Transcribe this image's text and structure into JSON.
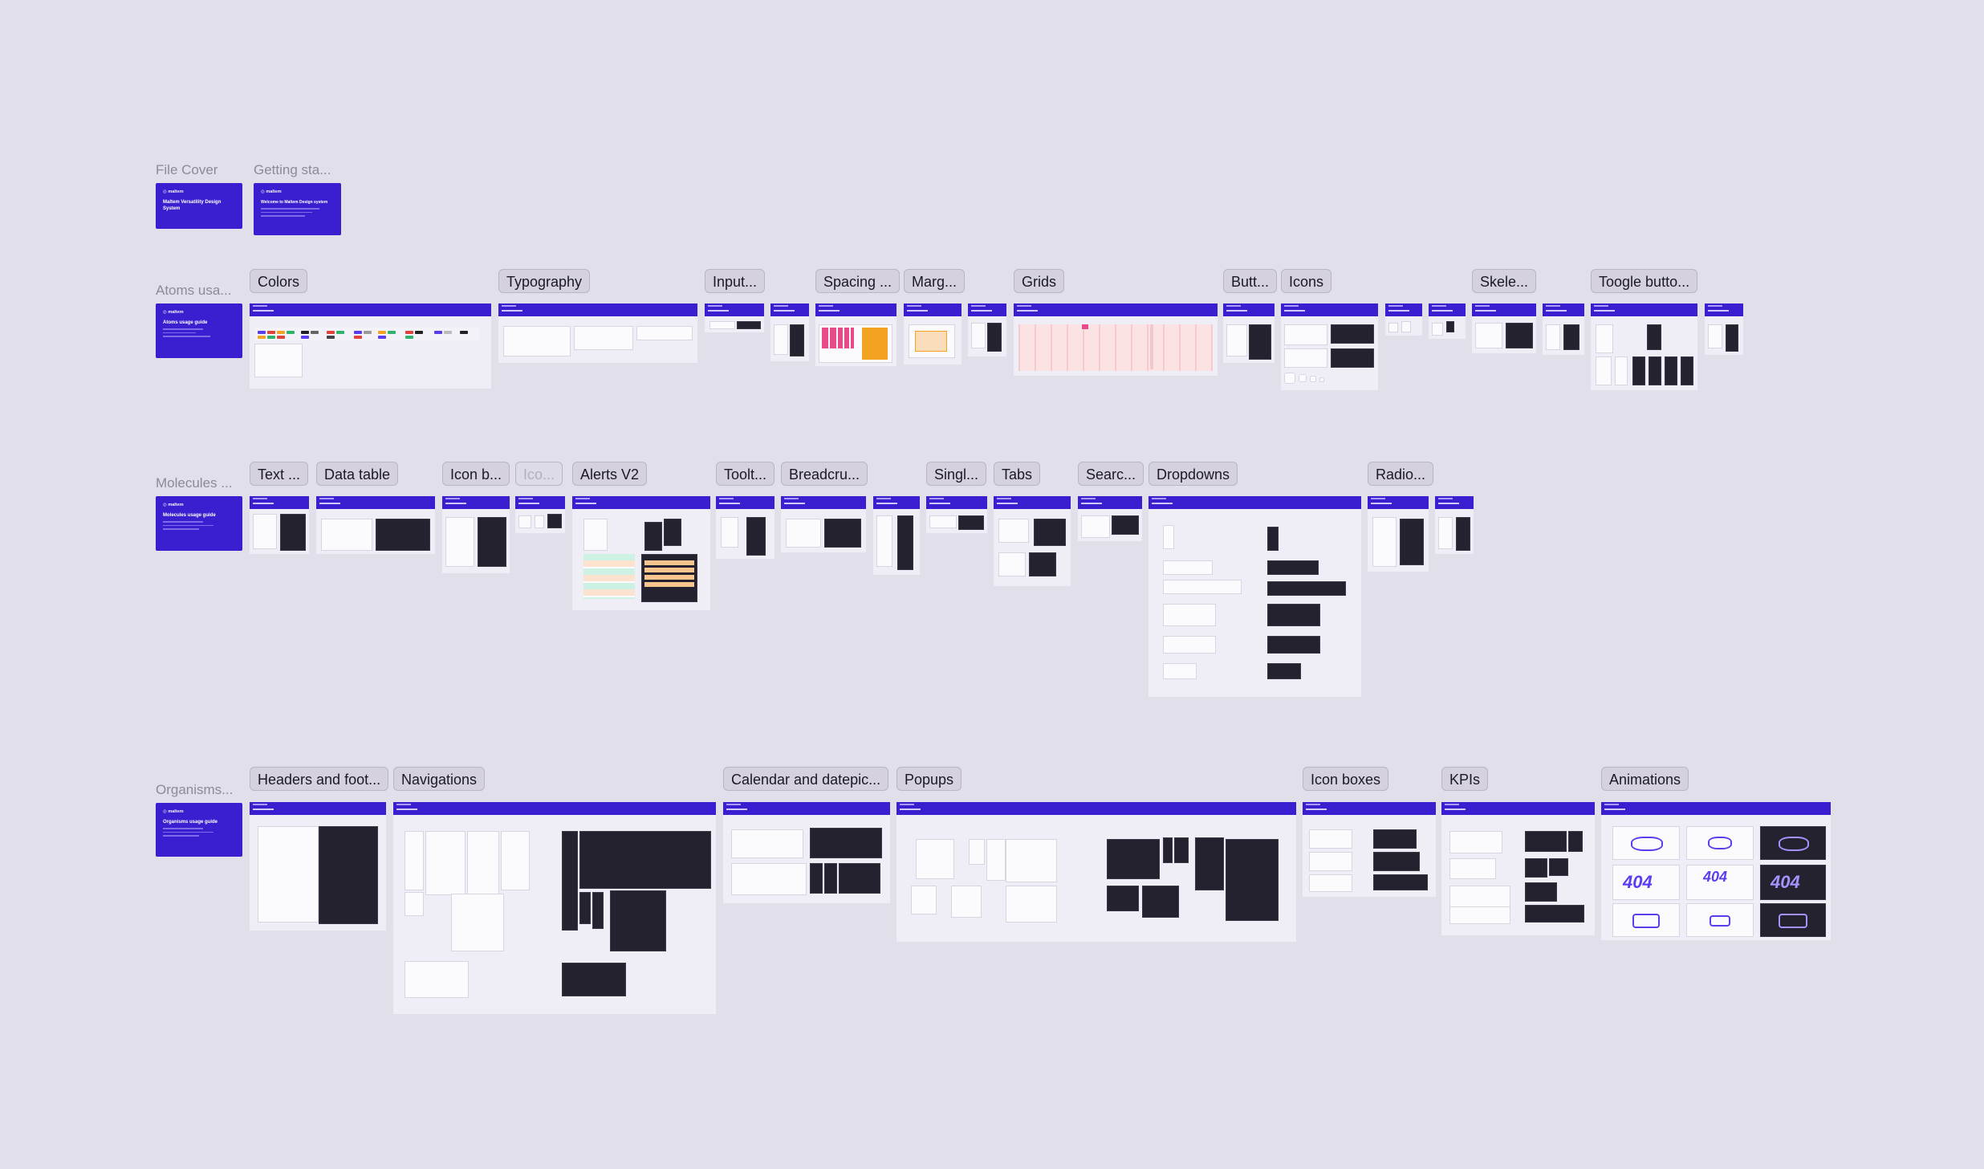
{
  "rows": {
    "covers": {
      "file_cover": "File Cover",
      "getting_started": "Getting sta..."
    },
    "atoms": {
      "label": "Atoms usa...",
      "tags": [
        "Colors",
        "Typography",
        "Input...",
        "Spacing ...",
        "Marg...",
        "Grids",
        "Butt...",
        "Icons",
        "Skele...",
        "Toogle butto..."
      ]
    },
    "molecules": {
      "label": "Molecules ...",
      "tags": [
        "Text ...",
        "Data table",
        "Icon b...",
        "Ico...",
        "Alerts V2",
        "Toolt...",
        "Breadcru...",
        "Singl...",
        "Tabs",
        "Searc...",
        "Dropdowns",
        "Radio..."
      ]
    },
    "organisms": {
      "label": "Organisms...",
      "tags": [
        "Headers and foot...",
        "Navigations",
        "Calendar and datepic...",
        "Popups",
        "Icon boxes",
        "KPIs",
        "Animations"
      ]
    }
  },
  "covers_text": {
    "file_cover": {
      "logo": "◎ maltem",
      "title": "Maltem Versatility Design System"
    },
    "getting_started": {
      "logo": "◎ maltem",
      "title": "Welcome to Maltem Design system"
    },
    "atoms": {
      "logo": "◎ maltem",
      "title": "Atoms usage guide"
    },
    "molecules": {
      "logo": "◎ maltem",
      "title": "Molecules usage guide"
    },
    "organisms": {
      "logo": "◎ maltem",
      "title": "Organisms usage guide"
    }
  },
  "animations": {
    "error_code": "404"
  },
  "colors": {
    "canvas": "#e1dfe9",
    "section_bg": "#d9d0ea",
    "brand": "#3a1fd1",
    "dark_surface": "#25222f"
  }
}
